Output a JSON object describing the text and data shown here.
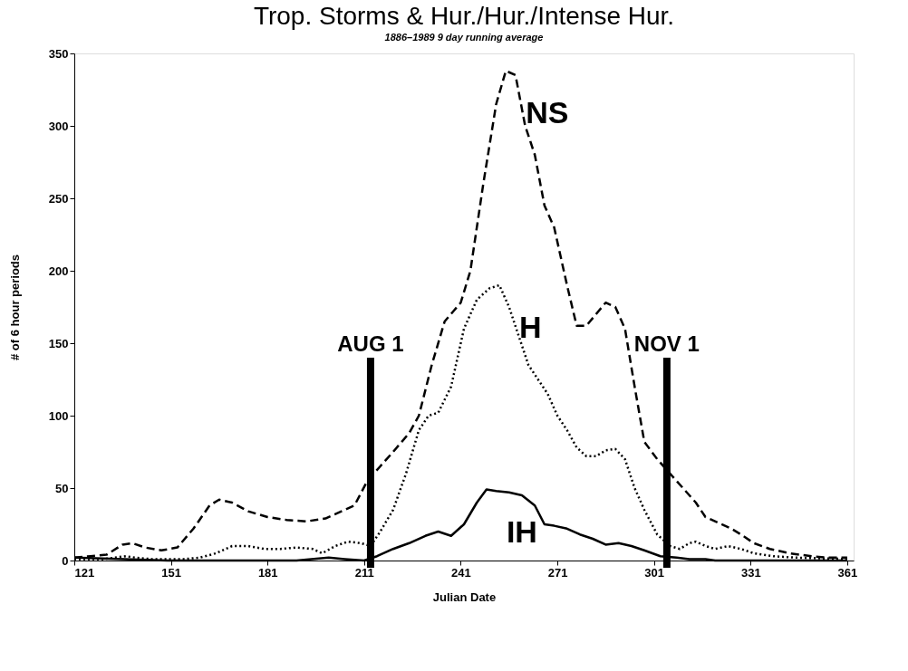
{
  "chart_data": {
    "type": "line",
    "title": "Trop. Storms & Hur./Hur./Intense Hur.",
    "subtitle": "1886–1989   9 day running average",
    "xlabel": "Julian Date",
    "ylabel": "# of 6 hour periods",
    "xlim": [
      121,
      363
    ],
    "ylim": [
      0,
      350
    ],
    "xticks": [
      121,
      151,
      181,
      211,
      241,
      271,
      301,
      331,
      361
    ],
    "yticks": [
      0,
      50,
      100,
      150,
      200,
      250,
      300,
      350
    ],
    "grid": false,
    "legend": false,
    "marker": "none",
    "series": [
      {
        "name": "NS",
        "color": "#000000",
        "line_style": "dashed",
        "x": [
          121,
          126,
          131,
          136,
          139,
          143,
          148,
          153,
          158,
          163,
          166,
          170,
          175,
          181,
          187,
          193,
          199,
          205,
          208,
          212,
          216,
          220,
          225,
          228,
          232,
          236,
          241,
          244,
          248,
          252,
          255,
          258,
          261,
          264,
          267,
          270,
          274,
          277,
          280,
          283,
          286,
          289,
          292,
          295,
          298,
          302,
          306,
          310,
          314,
          317,
          321,
          325,
          328,
          332,
          337,
          343,
          350,
          355,
          361
        ],
        "values": [
          2,
          3,
          4,
          11,
          12,
          9,
          7,
          9,
          22,
          38,
          42,
          40,
          34,
          30,
          28,
          27,
          29,
          35,
          38,
          55,
          65,
          75,
          88,
          100,
          135,
          165,
          178,
          200,
          260,
          315,
          338,
          335,
          300,
          280,
          245,
          230,
          190,
          162,
          162,
          170,
          178,
          175,
          160,
          120,
          82,
          70,
          60,
          50,
          40,
          30,
          26,
          22,
          18,
          12,
          8,
          5,
          3,
          2,
          2
        ]
      },
      {
        "name": "H",
        "color": "#000000",
        "line_style": "dotted",
        "x": [
          121,
          130,
          137,
          140,
          145,
          155,
          160,
          165,
          170,
          175,
          180,
          185,
          190,
          195,
          198,
          202,
          206,
          210,
          213,
          216,
          220,
          224,
          228,
          231,
          234,
          238,
          242,
          246,
          250,
          253,
          256,
          259,
          262,
          265,
          268,
          271,
          274,
          277,
          280,
          283,
          286,
          289,
          292,
          295,
          298,
          302,
          306,
          309,
          312,
          314,
          317,
          320,
          324,
          328,
          332,
          338,
          345,
          361
        ],
        "values": [
          1,
          1,
          3,
          2,
          1,
          1,
          2,
          5,
          10,
          10,
          8,
          8,
          9,
          8,
          5,
          10,
          13,
          12,
          10,
          20,
          35,
          60,
          90,
          100,
          102,
          120,
          160,
          180,
          188,
          190,
          175,
          155,
          135,
          125,
          115,
          100,
          90,
          78,
          72,
          72,
          76,
          77,
          70,
          50,
          35,
          18,
          10,
          8,
          12,
          13,
          10,
          8,
          10,
          8,
          5,
          3,
          2,
          1
        ]
      },
      {
        "name": "IH",
        "color": "#000000",
        "line_style": "solid",
        "x": [
          121,
          150,
          170,
          190,
          200,
          205,
          211,
          215,
          220,
          225,
          230,
          234,
          238,
          242,
          246,
          249,
          252,
          256,
          260,
          264,
          267,
          270,
          274,
          278,
          282,
          286,
          290,
          294,
          298,
          303,
          308,
          312,
          317,
          320,
          325,
          361
        ],
        "values": [
          2,
          0,
          0,
          0,
          2,
          1,
          0,
          3,
          8,
          12,
          17,
          20,
          17,
          25,
          40,
          49,
          48,
          47,
          45,
          38,
          25,
          24,
          22,
          18,
          15,
          11,
          12,
          10,
          7,
          3,
          2,
          1,
          1,
          0,
          0,
          0
        ]
      }
    ],
    "ref_lines": [
      {
        "axis": "x",
        "value": 213,
        "label": "AUG 1",
        "color": "#000000"
      },
      {
        "axis": "x",
        "value": 305,
        "label": "NOV 1",
        "color": "#000000"
      }
    ]
  }
}
